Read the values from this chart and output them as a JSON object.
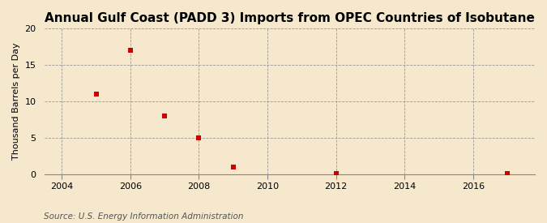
{
  "title": "Annual Gulf Coast (PADD 3) Imports from OPEC Countries of Isobutane",
  "ylabel": "Thousand Barrels per Day",
  "source": "Source: U.S. Energy Information Administration",
  "xlim": [
    2003.5,
    2017.8
  ],
  "ylim": [
    0,
    20
  ],
  "xticks": [
    2004,
    2006,
    2008,
    2010,
    2012,
    2014,
    2016
  ],
  "yticks": [
    0,
    5,
    10,
    15,
    20
  ],
  "data_x": [
    2005,
    2006,
    2007,
    2008,
    2009,
    2012,
    2017
  ],
  "data_y": [
    11,
    17,
    8,
    5,
    1,
    0.05,
    0.05
  ],
  "marker_color": "#cc0000",
  "marker": "s",
  "marker_size": 4,
  "bg_color": "#f5e8cc",
  "plot_bg_color": "#f5e8cc",
  "grid_color": "#999999",
  "title_fontsize": 11,
  "label_fontsize": 8,
  "tick_fontsize": 8,
  "source_fontsize": 7.5
}
